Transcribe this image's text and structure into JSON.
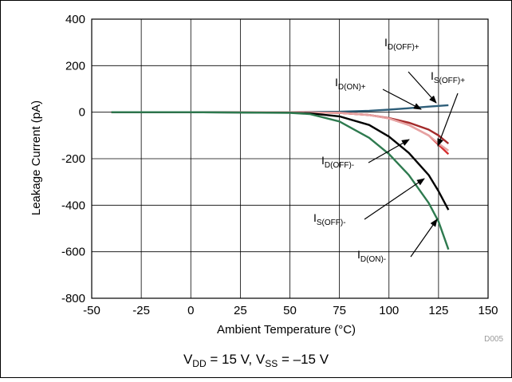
{
  "chart_data": {
    "type": "line",
    "xlabel": "Ambient Temperature (°C)",
    "ylabel": "Leakage Current (pA)",
    "xlim": [
      -50,
      150
    ],
    "ylim": [
      -800,
      400
    ],
    "x_ticks": [
      "-50",
      "-25",
      "0",
      "25",
      "50",
      "75",
      "100",
      "125",
      "150"
    ],
    "y_ticks": [
      "400",
      "200",
      "0",
      "-200",
      "-400",
      "-600",
      "-800"
    ],
    "grid": true,
    "figure_id": "D005",
    "caption": {
      "v1": "V",
      "s1": "DD",
      "m1": " = 15 V, V",
      "s2": "SS",
      "m2": " = –15 V"
    },
    "series": [
      {
        "name": "ID(OFF)+",
        "color": "#2f5f7a",
        "x": [
          -40,
          0,
          50,
          75,
          90,
          100,
          110,
          120,
          130
        ],
        "y": [
          0,
          0,
          0,
          2,
          6,
          11,
          17,
          24,
          30
        ]
      },
      {
        "name": "ID(ON)+",
        "color": "#a32a2a",
        "x": [
          -40,
          0,
          50,
          75,
          90,
          100,
          110,
          120,
          125,
          130
        ],
        "y": [
          0,
          0,
          0,
          -3,
          -12,
          -25,
          -45,
          -75,
          -100,
          -135
        ]
      },
      {
        "name": "IS(OFF)+",
        "color": "#d63030",
        "x": [
          -40,
          0,
          50,
          75,
          90,
          100,
          110,
          120,
          125,
          130
        ],
        "y": [
          0,
          0,
          0,
          -3,
          -12,
          -27,
          -55,
          -100,
          -140,
          -180
        ]
      },
      {
        "name": "ID(OFF)-",
        "color": "#e6a3a3",
        "x": [
          -40,
          0,
          50,
          75,
          90,
          100,
          110,
          120,
          125,
          130
        ],
        "y": [
          0,
          0,
          0,
          -3,
          -12,
          -27,
          -55,
          -100,
          -135,
          -165
        ]
      },
      {
        "name": "IS(OFF)-",
        "color": "#000000",
        "x": [
          -40,
          0,
          50,
          60,
          75,
          90,
          100,
          110,
          120,
          125,
          130
        ],
        "y": [
          0,
          0,
          -2,
          -5,
          -18,
          -55,
          -105,
          -175,
          -270,
          -340,
          -420
        ]
      },
      {
        "name": "ID(ON)-",
        "color": "#2e7a4f",
        "x": [
          -40,
          0,
          50,
          60,
          75,
          90,
          100,
          110,
          120,
          125,
          130
        ],
        "y": [
          0,
          0,
          -3,
          -8,
          -40,
          -110,
          -180,
          -270,
          -390,
          -470,
          -590
        ]
      }
    ],
    "annotations": [
      {
        "base": "I",
        "sub": "D(OFF)+"
      },
      {
        "base": "I",
        "sub": "D(ON)+"
      },
      {
        "base": "I",
        "sub": "S(OFF)+"
      },
      {
        "base": "I",
        "sub": "D(OFF)-"
      },
      {
        "base": "I",
        "sub": "S(OFF)-"
      },
      {
        "base": "I",
        "sub": "D(ON)-"
      }
    ]
  }
}
